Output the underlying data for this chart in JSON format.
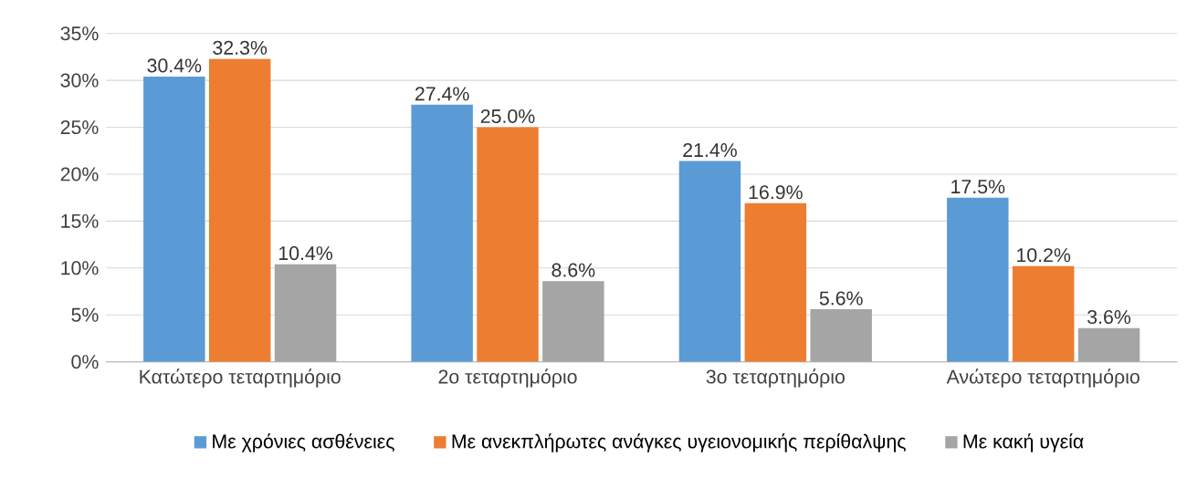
{
  "chart_data": {
    "type": "bar",
    "categories": [
      "Κατώτερο τεταρτημόριο",
      "2ο τεταρτημόριο",
      "3ο τεταρτημόριο",
      "Ανώτερο τεταρτημόριο"
    ],
    "series": [
      {
        "name": "Με χρόνιες ασθένειες",
        "color": "#5b9bd5",
        "values": [
          30.4,
          27.4,
          21.4,
          17.5
        ],
        "value_labels": [
          "30.4%",
          "27.4%",
          "21.4%",
          "17.5%"
        ]
      },
      {
        "name": "Με ανεκπλήρωτες ανάγκες υγειονομικής περίθαλψης",
        "color": "#ed7d31",
        "values": [
          32.3,
          25.0,
          16.9,
          10.2
        ],
        "value_labels": [
          "32.3%",
          "25.0%",
          "16.9%",
          "10.2%"
        ]
      },
      {
        "name": "Με κακή υγεία",
        "color": "#a5a5a5",
        "values": [
          10.4,
          8.6,
          5.6,
          3.6
        ],
        "value_labels": [
          "10.4%",
          "8.6%",
          "5.6%",
          "3.6%"
        ]
      }
    ],
    "ylim": [
      0,
      35
    ],
    "yticks": [
      {
        "value": 0,
        "label": "0%"
      },
      {
        "value": 5,
        "label": "5%"
      },
      {
        "value": 10,
        "label": "10%"
      },
      {
        "value": 15,
        "label": "15%"
      },
      {
        "value": 20,
        "label": "20%"
      },
      {
        "value": 25,
        "label": "25%"
      },
      {
        "value": 30,
        "label": "30%"
      },
      {
        "value": 35,
        "label": "35%"
      }
    ],
    "grid": "y",
    "legend": "bottom"
  }
}
